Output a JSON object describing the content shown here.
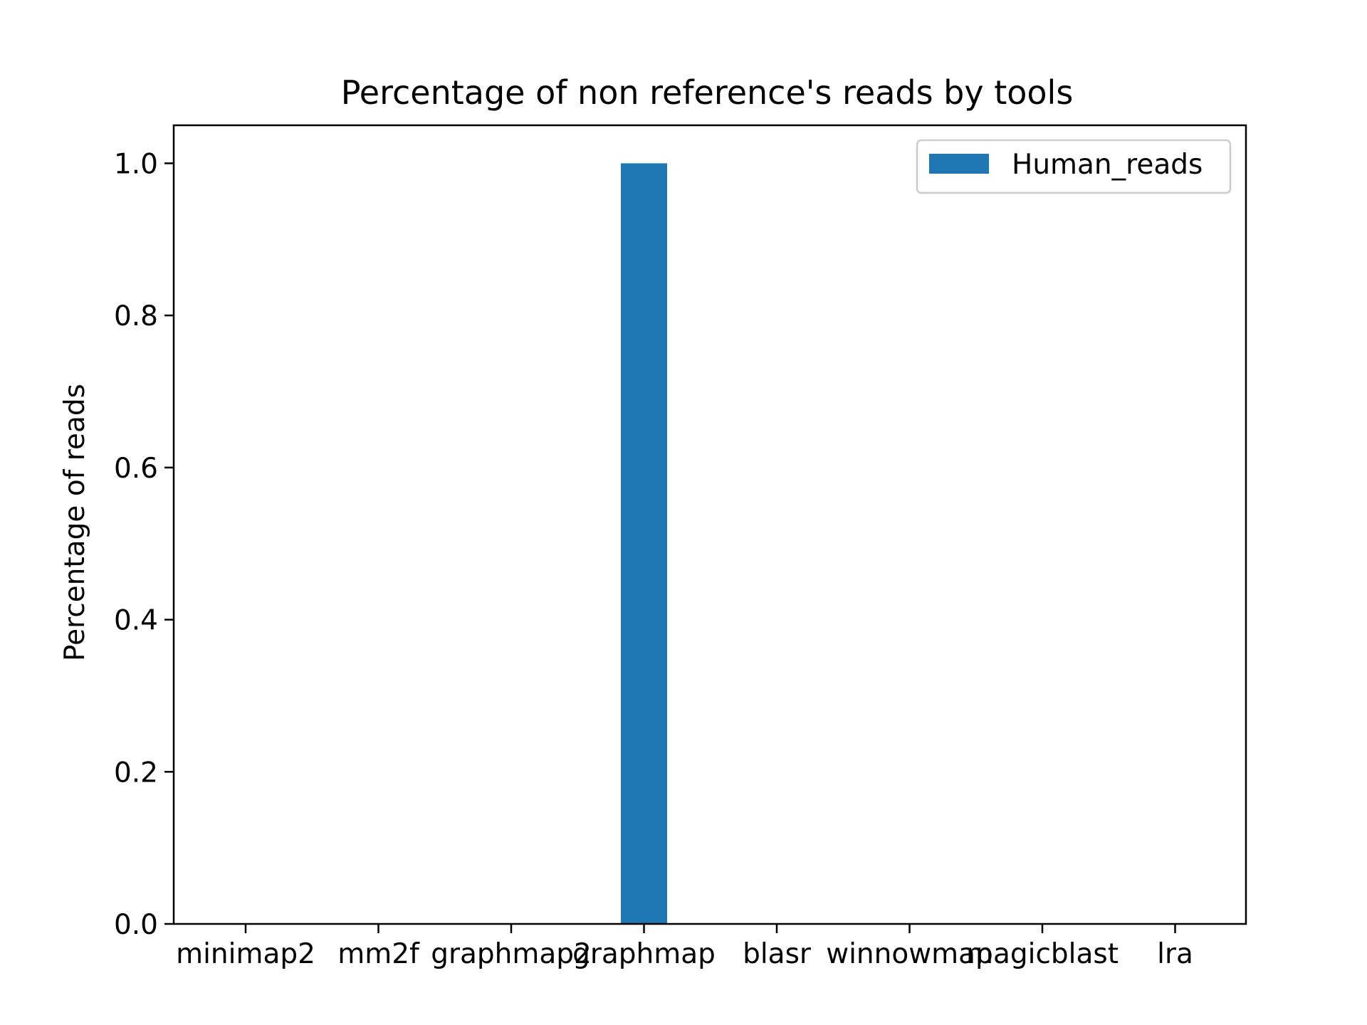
{
  "chart_data": {
    "type": "bar",
    "title": "Percentage of non reference's reads by tools",
    "xlabel": "",
    "ylabel": "Percentage of reads",
    "categories": [
      "minimap2",
      "mm2f",
      "graphmap2",
      "graphmap",
      "blasr",
      "winnowmap",
      "magicblast",
      "lra"
    ],
    "series": [
      {
        "name": "Human_reads",
        "color": "#1f77b4",
        "values": [
          0,
          0,
          0,
          1.0,
          0,
          0,
          0,
          0
        ]
      }
    ],
    "ylim": [
      0,
      1.05
    ],
    "yticks": [
      0.0,
      0.2,
      0.4,
      0.6,
      0.8,
      1.0
    ],
    "ytick_labels": [
      "0.0",
      "0.2",
      "0.4",
      "0.6",
      "0.8",
      "1.0"
    ],
    "grid": false,
    "legend_position": "top-right"
  }
}
